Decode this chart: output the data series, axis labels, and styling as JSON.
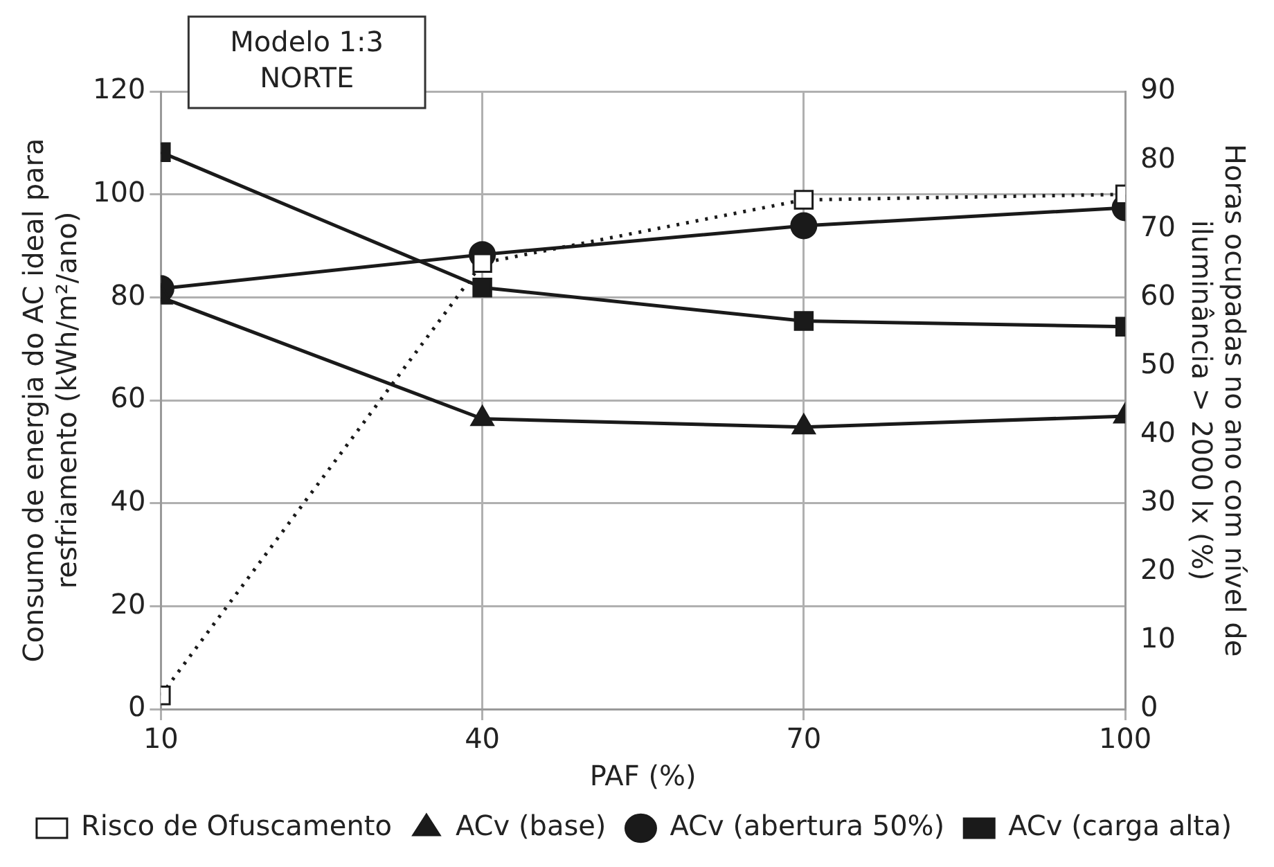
{
  "chart_data": {
    "type": "line",
    "xlabel": "PAF (%)",
    "ylabel": "Consumo de energia do AC ideal para resfriamento (kWh/m²/ano)",
    "y2label": "Horas ocupadas no ano com nível de iluminância > 2000 lx (%)",
    "annotations": [
      "Modelo 1:3\nNORTE"
    ],
    "x": [
      10,
      40,
      70,
      100
    ],
    "xlim": [
      10,
      100
    ],
    "xticks": [
      10,
      40,
      70,
      100
    ],
    "ylim": [
      0,
      120
    ],
    "yticks": [
      0,
      20,
      40,
      60,
      80,
      100,
      120
    ],
    "y2lim": [
      0,
      90
    ],
    "y2ticks": [
      0,
      10,
      20,
      30,
      40,
      50,
      60,
      70,
      80,
      90
    ],
    "grid": true,
    "legend": "bottom",
    "series": [
      {
        "name": "ACv (carga alta)",
        "color": "#1a1a1a",
        "marker": "square",
        "line_style": "solid",
        "values": [
          108.2,
          81.9,
          75.4,
          74.3
        ]
      },
      {
        "name": "ACv (abertura 50%)",
        "color": "#1a1a1a",
        "marker": "circle",
        "line_style": "solid",
        "values": [
          81.7,
          88.3,
          93.9,
          97.4
        ]
      },
      {
        "name": "ACv (base)",
        "color": "#1a1a1a",
        "marker": "triangle",
        "line_style": "solid",
        "values": [
          80,
          56.4,
          54.8,
          56.9
        ]
      },
      {
        "name": "Risco de Ofuscamento",
        "color": "#1a1a1a",
        "marker": "square",
        "line_style": "dotted",
        "axis": "y2",
        "values": [
          2,
          65,
          74.2,
          75
        ]
      }
    ]
  }
}
